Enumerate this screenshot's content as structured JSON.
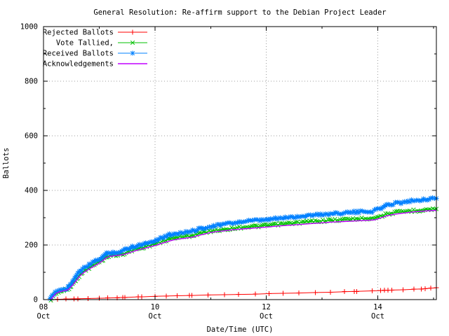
{
  "chart_data": {
    "type": "line",
    "title": "General Resolution: Re-affirm support to the Debian Project Leader",
    "xlabel": "Date/Time (UTC)",
    "ylabel": "Ballots",
    "x_axis_unit": "days from 08 Oct 00:00 UTC",
    "xlim": [
      0,
      7.05
    ],
    "ylim": [
      0,
      1000
    ],
    "xticks": [
      {
        "x": 0,
        "label": [
          "08",
          "Oct"
        ]
      },
      {
        "x": 2,
        "label": [
          "10",
          "Oct"
        ]
      },
      {
        "x": 4,
        "label": [
          "12",
          "Oct"
        ]
      },
      {
        "x": 6,
        "label": [
          "14",
          "Oct"
        ]
      }
    ],
    "x_minor_ticks": [
      1,
      3,
      5,
      7
    ],
    "yticks": [
      0,
      200,
      400,
      600,
      800,
      1000
    ],
    "y_minor_ticks": [
      100,
      300,
      500,
      700,
      900
    ],
    "grid": {
      "x_at": [
        2,
        4,
        6
      ],
      "y_at": [
        200,
        400,
        600,
        800
      ],
      "color": "#9e9e9e"
    },
    "legend_position": "top-left",
    "series": [
      {
        "name": "Rejected Ballots",
        "slug": "rejected-ballots",
        "color": "#ff0000",
        "marker": "plus",
        "dense": false,
        "width": 1,
        "points": [
          [
            0.15,
            0
          ],
          [
            0.25,
            1
          ],
          [
            0.4,
            2
          ],
          [
            0.55,
            3
          ],
          [
            0.62,
            3
          ],
          [
            0.8,
            4
          ],
          [
            1.0,
            5
          ],
          [
            1.15,
            6
          ],
          [
            1.32,
            7
          ],
          [
            1.42,
            8
          ],
          [
            1.46,
            8
          ],
          [
            1.7,
            10
          ],
          [
            1.76,
            10
          ],
          [
            2.0,
            12
          ],
          [
            2.2,
            13
          ],
          [
            2.4,
            14
          ],
          [
            2.62,
            15
          ],
          [
            2.66,
            15
          ],
          [
            2.95,
            17
          ],
          [
            3.25,
            18
          ],
          [
            3.5,
            19
          ],
          [
            3.8,
            20
          ],
          [
            4.05,
            22
          ],
          [
            4.3,
            23
          ],
          [
            4.58,
            24
          ],
          [
            4.88,
            26
          ],
          [
            5.15,
            27
          ],
          [
            5.4,
            29
          ],
          [
            5.58,
            30
          ],
          [
            5.62,
            30
          ],
          [
            5.9,
            32
          ],
          [
            6.05,
            33
          ],
          [
            6.12,
            34
          ],
          [
            6.18,
            34
          ],
          [
            6.25,
            35
          ],
          [
            6.45,
            36
          ],
          [
            6.65,
            38
          ],
          [
            6.78,
            39
          ],
          [
            6.85,
            40
          ],
          [
            6.95,
            42
          ],
          [
            7.05,
            43
          ]
        ]
      },
      {
        "name": "Vote Tallied,",
        "slug": "vote-tallied",
        "color": "#00c000",
        "marker": "cross",
        "dense": true,
        "width": 1,
        "points": [
          [
            0.13,
            0
          ],
          [
            0.15,
            6
          ],
          [
            0.17,
            12
          ],
          [
            0.2,
            18
          ],
          [
            0.23,
            24
          ],
          [
            0.27,
            28
          ],
          [
            0.33,
            31
          ],
          [
            0.4,
            34
          ],
          [
            0.46,
            40
          ],
          [
            0.5,
            50
          ],
          [
            0.54,
            62
          ],
          [
            0.58,
            72
          ],
          [
            0.62,
            82
          ],
          [
            0.66,
            92
          ],
          [
            0.7,
            101
          ],
          [
            0.76,
            109
          ],
          [
            0.82,
            116
          ],
          [
            0.88,
            124
          ],
          [
            0.94,
            131
          ],
          [
            1.0,
            138
          ],
          [
            1.05,
            144
          ],
          [
            1.09,
            150
          ],
          [
            1.14,
            157
          ],
          [
            1.2,
            161
          ],
          [
            1.3,
            163
          ],
          [
            1.4,
            166
          ],
          [
            1.48,
            172
          ],
          [
            1.56,
            178
          ],
          [
            1.64,
            184
          ],
          [
            1.72,
            188
          ],
          [
            1.8,
            192
          ],
          [
            1.88,
            197
          ],
          [
            1.96,
            202
          ],
          [
            2.04,
            206
          ],
          [
            2.12,
            212
          ],
          [
            2.2,
            218
          ],
          [
            2.28,
            223
          ],
          [
            2.36,
            227
          ],
          [
            2.45,
            229
          ],
          [
            2.55,
            231
          ],
          [
            2.65,
            234
          ],
          [
            2.73,
            238
          ],
          [
            2.81,
            243
          ],
          [
            2.89,
            247
          ],
          [
            2.97,
            250
          ],
          [
            3.07,
            253
          ],
          [
            3.19,
            256
          ],
          [
            3.31,
            259
          ],
          [
            3.44,
            262
          ],
          [
            3.58,
            265
          ],
          [
            3.74,
            268
          ],
          [
            3.92,
            270
          ],
          [
            4.08,
            273
          ],
          [
            4.24,
            276
          ],
          [
            4.4,
            279
          ],
          [
            4.56,
            282
          ],
          [
            4.72,
            285
          ],
          [
            4.88,
            287
          ],
          [
            5.04,
            289
          ],
          [
            5.2,
            291
          ],
          [
            5.36,
            293
          ],
          [
            5.52,
            295
          ],
          [
            5.68,
            296
          ],
          [
            5.84,
            298
          ],
          [
            5.96,
            300
          ],
          [
            6.05,
            306
          ],
          [
            6.14,
            312
          ],
          [
            6.24,
            317
          ],
          [
            6.36,
            320
          ],
          [
            6.5,
            323
          ],
          [
            6.64,
            326
          ],
          [
            6.78,
            328
          ],
          [
            6.9,
            330
          ],
          [
            7.05,
            332
          ]
        ]
      },
      {
        "name": "Received Ballots",
        "slug": "received-ballots",
        "color": "#0080ff",
        "marker": "star",
        "dense": true,
        "width": 1,
        "points": [
          [
            0.12,
            0
          ],
          [
            0.14,
            8
          ],
          [
            0.16,
            15
          ],
          [
            0.18,
            22
          ],
          [
            0.21,
            28
          ],
          [
            0.25,
            33
          ],
          [
            0.3,
            36
          ],
          [
            0.36,
            38
          ],
          [
            0.42,
            41
          ],
          [
            0.46,
            50
          ],
          [
            0.5,
            62
          ],
          [
            0.54,
            74
          ],
          [
            0.58,
            85
          ],
          [
            0.62,
            94
          ],
          [
            0.66,
            104
          ],
          [
            0.7,
            113
          ],
          [
            0.76,
            120
          ],
          [
            0.82,
            127
          ],
          [
            0.88,
            135
          ],
          [
            0.94,
            142
          ],
          [
            1.0,
            149
          ],
          [
            1.05,
            155
          ],
          [
            1.09,
            161
          ],
          [
            1.13,
            168
          ],
          [
            1.18,
            171
          ],
          [
            1.28,
            173
          ],
          [
            1.38,
            175
          ],
          [
            1.46,
            183
          ],
          [
            1.54,
            189
          ],
          [
            1.62,
            195
          ],
          [
            1.7,
            199
          ],
          [
            1.78,
            203
          ],
          [
            1.86,
            208
          ],
          [
            1.94,
            213
          ],
          [
            2.02,
            218
          ],
          [
            2.1,
            225
          ],
          [
            2.18,
            231
          ],
          [
            2.26,
            237
          ],
          [
            2.34,
            241
          ],
          [
            2.42,
            244
          ],
          [
            2.52,
            246
          ],
          [
            2.62,
            248
          ],
          [
            2.7,
            252
          ],
          [
            2.78,
            258
          ],
          [
            2.86,
            263
          ],
          [
            2.94,
            266
          ],
          [
            3.02,
            269
          ],
          [
            3.12,
            272
          ],
          [
            3.24,
            276
          ],
          [
            3.36,
            280
          ],
          [
            3.48,
            283
          ],
          [
            3.62,
            286
          ],
          [
            3.78,
            289
          ],
          [
            3.95,
            291
          ],
          [
            4.1,
            295
          ],
          [
            4.25,
            298
          ],
          [
            4.4,
            301
          ],
          [
            4.55,
            304
          ],
          [
            4.7,
            307
          ],
          [
            4.85,
            310
          ],
          [
            5.0,
            312
          ],
          [
            5.15,
            314
          ],
          [
            5.3,
            317
          ],
          [
            5.45,
            319
          ],
          [
            5.6,
            320
          ],
          [
            5.75,
            322
          ],
          [
            5.9,
            324
          ],
          [
            6.0,
            330
          ],
          [
            6.08,
            338
          ],
          [
            6.16,
            345
          ],
          [
            6.24,
            350
          ],
          [
            6.35,
            354
          ],
          [
            6.48,
            358
          ],
          [
            6.6,
            362
          ],
          [
            6.72,
            365
          ],
          [
            6.85,
            368
          ],
          [
            7.05,
            371
          ]
        ]
      },
      {
        "name": "Acknowledgements",
        "slug": "acknowledgements",
        "color": "#c000ff",
        "marker": "none",
        "dense": false,
        "width": 1.4,
        "points": [
          [
            0.13,
            0
          ],
          [
            0.17,
            10
          ],
          [
            0.22,
            22
          ],
          [
            0.28,
            28
          ],
          [
            0.36,
            32
          ],
          [
            0.44,
            36
          ],
          [
            0.5,
            48
          ],
          [
            0.56,
            62
          ],
          [
            0.62,
            78
          ],
          [
            0.68,
            92
          ],
          [
            0.75,
            103
          ],
          [
            0.83,
            113
          ],
          [
            0.91,
            123
          ],
          [
            0.99,
            132
          ],
          [
            1.06,
            142
          ],
          [
            1.12,
            152
          ],
          [
            1.18,
            158
          ],
          [
            1.3,
            161
          ],
          [
            1.42,
            164
          ],
          [
            1.52,
            170
          ],
          [
            1.62,
            177
          ],
          [
            1.72,
            183
          ],
          [
            1.82,
            188
          ],
          [
            1.92,
            194
          ],
          [
            2.02,
            199
          ],
          [
            2.12,
            206
          ],
          [
            2.22,
            212
          ],
          [
            2.32,
            218
          ],
          [
            2.42,
            222
          ],
          [
            2.55,
            225
          ],
          [
            2.68,
            229
          ],
          [
            2.78,
            235
          ],
          [
            2.88,
            240
          ],
          [
            2.98,
            245
          ],
          [
            3.1,
            249
          ],
          [
            3.25,
            252
          ],
          [
            3.4,
            256
          ],
          [
            3.58,
            259
          ],
          [
            3.78,
            262
          ],
          [
            3.98,
            265
          ],
          [
            4.18,
            269
          ],
          [
            4.38,
            272
          ],
          [
            4.58,
            275
          ],
          [
            4.78,
            278
          ],
          [
            4.98,
            281
          ],
          [
            5.18,
            284
          ],
          [
            5.38,
            286
          ],
          [
            5.58,
            288
          ],
          [
            5.78,
            290
          ],
          [
            5.95,
            292
          ],
          [
            6.06,
            300
          ],
          [
            6.16,
            307
          ],
          [
            6.28,
            312
          ],
          [
            6.42,
            316
          ],
          [
            6.58,
            320
          ],
          [
            6.74,
            323
          ],
          [
            7.05,
            327
          ]
        ]
      }
    ]
  }
}
